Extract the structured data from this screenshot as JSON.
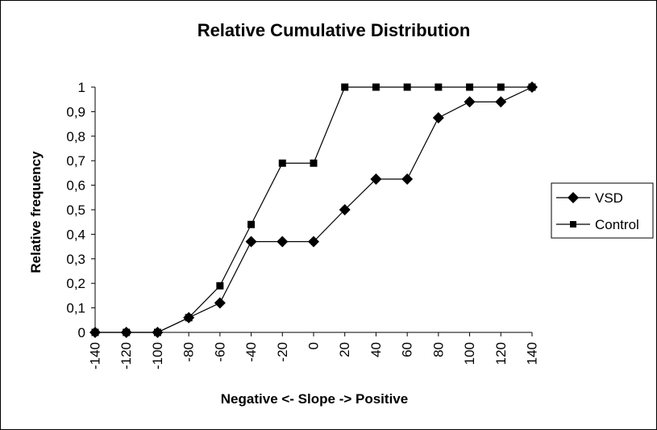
{
  "chart_data": {
    "type": "line",
    "title": "Relative Cumulative Distribution",
    "xlabel": "Negative <- Slope -> Positive",
    "ylabel": "Relative frequency",
    "x": [
      "-140",
      "-120",
      "-100",
      "-80",
      "-60",
      "-40",
      "-20",
      "0",
      "20",
      "40",
      "60",
      "80",
      "100",
      "120",
      "140"
    ],
    "yticks": [
      "0",
      "0,1",
      "0,2",
      "0,3",
      "0,4",
      "0,5",
      "0,6",
      "0,7",
      "0,8",
      "0,9",
      "1"
    ],
    "ylim": [
      0,
      1
    ],
    "grid": false,
    "legend_position": "right",
    "series": [
      {
        "name": "VSD",
        "marker": "diamond",
        "color": "#000000",
        "values": [
          0,
          0,
          0,
          0.06,
          0.12,
          0.37,
          0.37,
          0.37,
          0.5,
          0.625,
          0.625,
          0.875,
          0.94,
          0.94,
          1
        ]
      },
      {
        "name": "Control",
        "marker": "square",
        "color": "#000000",
        "values": [
          0,
          0,
          0,
          0.06,
          0.19,
          0.44,
          0.69,
          0.69,
          1,
          1,
          1,
          1,
          1,
          1,
          1
        ]
      }
    ]
  }
}
